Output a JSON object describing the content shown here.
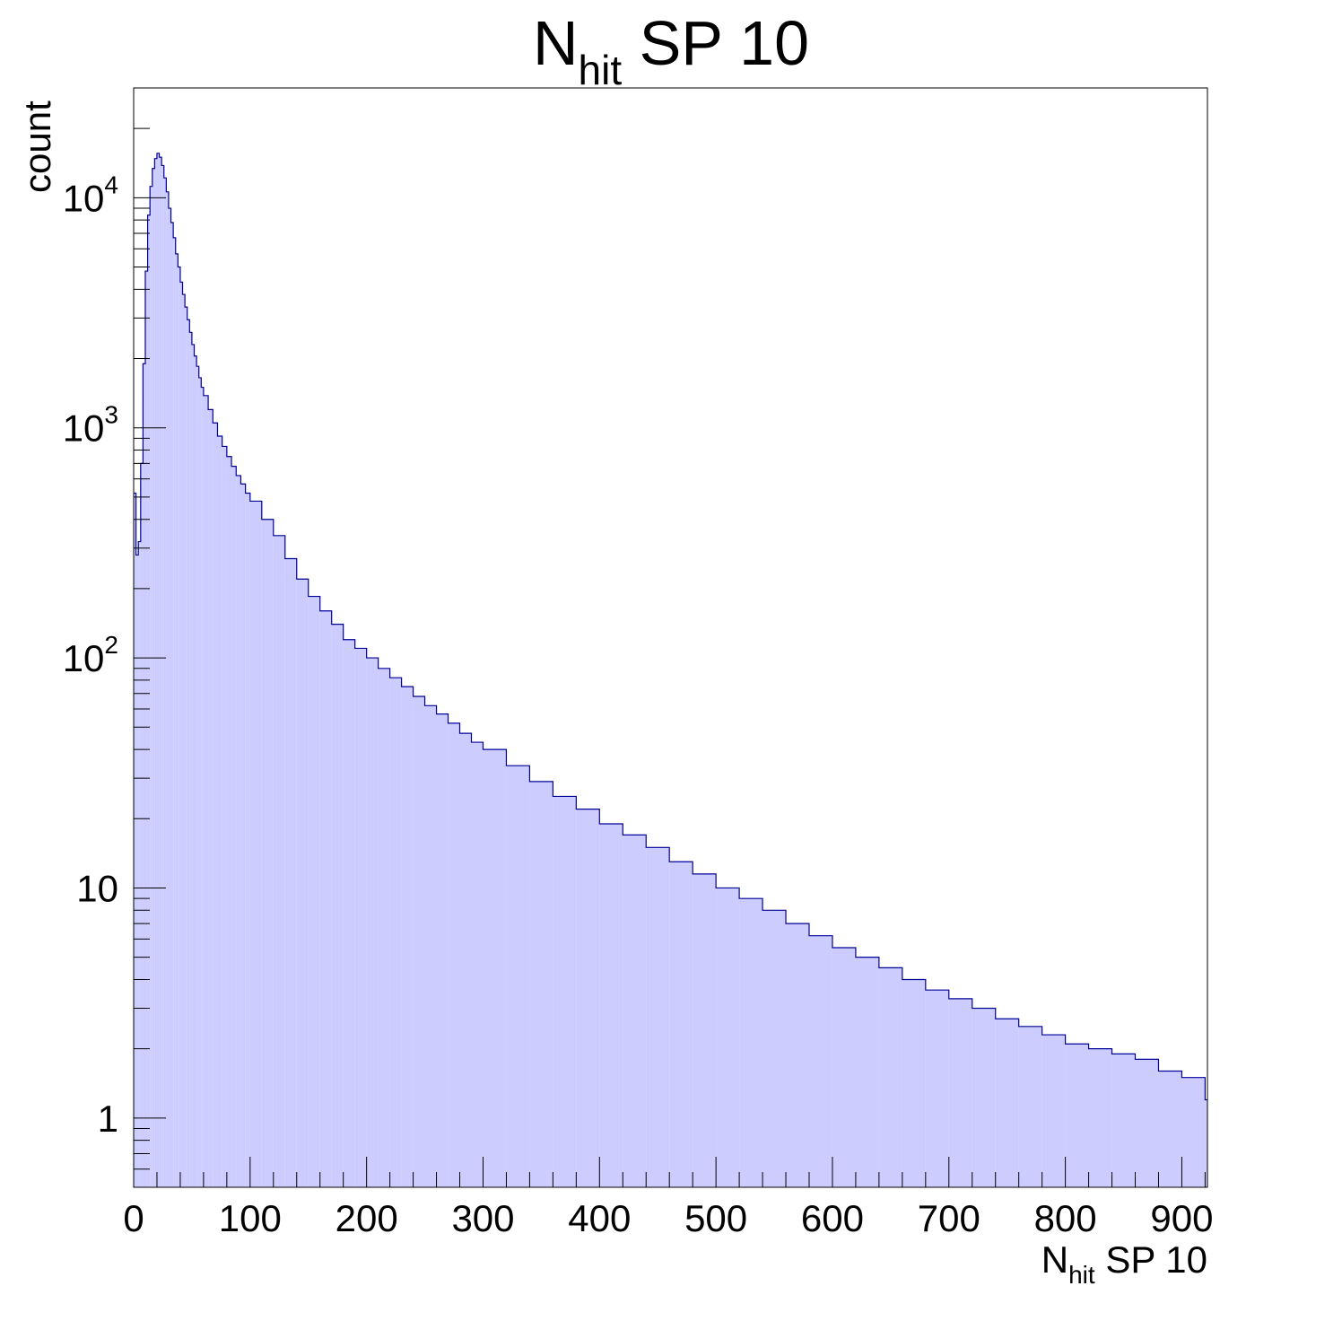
{
  "chart_data": {
    "type": "histogram",
    "title": {
      "main": "N",
      "sub": "hit",
      "rest": " SP 10"
    },
    "xlabel": {
      "main": "N",
      "sub": "hit",
      "rest": " SP 10"
    },
    "ylabel": "count",
    "x_tick_labels": [
      "0",
      "100",
      "200",
      "300",
      "400",
      "500",
      "600",
      "700",
      "800",
      "900"
    ],
    "y_tick_labels": [
      {
        "base": "1",
        "exp": ""
      },
      {
        "base": "10",
        "exp": ""
      },
      {
        "base": "10",
        "exp": "2"
      },
      {
        "base": "10",
        "exp": "3"
      },
      {
        "base": "10",
        "exp": "4"
      }
    ],
    "xlim": [
      0,
      922
    ],
    "ylim": [
      0.5,
      30000
    ],
    "y_scale": "log",
    "bin_width": 2,
    "fill_color": "#ccccff",
    "line_color": "#000099",
    "bins": [
      {
        "x": 0,
        "y": 520
      },
      {
        "x": 2,
        "y": 280
      },
      {
        "x": 4,
        "y": 320
      },
      {
        "x": 6,
        "y": 700
      },
      {
        "x": 8,
        "y": 1900
      },
      {
        "x": 10,
        "y": 4800
      },
      {
        "x": 12,
        "y": 8400
      },
      {
        "x": 14,
        "y": 11200
      },
      {
        "x": 16,
        "y": 13400
      },
      {
        "x": 18,
        "y": 14800
      },
      {
        "x": 20,
        "y": 15600
      },
      {
        "x": 22,
        "y": 15000
      },
      {
        "x": 24,
        "y": 13800
      },
      {
        "x": 26,
        "y": 12200
      },
      {
        "x": 28,
        "y": 10600
      },
      {
        "x": 30,
        "y": 9000
      },
      {
        "x": 32,
        "y": 7800
      },
      {
        "x": 34,
        "y": 6700
      },
      {
        "x": 36,
        "y": 5700
      },
      {
        "x": 38,
        "y": 5000
      },
      {
        "x": 40,
        "y": 4300
      },
      {
        "x": 42,
        "y": 3800
      },
      {
        "x": 44,
        "y": 3350
      },
      {
        "x": 46,
        "y": 2950
      },
      {
        "x": 48,
        "y": 2600
      },
      {
        "x": 50,
        "y": 2300
      },
      {
        "x": 52,
        "y": 2050
      },
      {
        "x": 54,
        "y": 1850
      },
      {
        "x": 56,
        "y": 1650
      },
      {
        "x": 58,
        "y": 1500
      },
      {
        "x": 60,
        "y": 1380
      },
      {
        "x": 64,
        "y": 1200
      },
      {
        "x": 68,
        "y": 1050
      },
      {
        "x": 72,
        "y": 920
      },
      {
        "x": 76,
        "y": 830
      },
      {
        "x": 80,
        "y": 750
      },
      {
        "x": 84,
        "y": 680
      },
      {
        "x": 88,
        "y": 620
      },
      {
        "x": 92,
        "y": 570
      },
      {
        "x": 96,
        "y": 520
      },
      {
        "x": 100,
        "y": 480
      },
      {
        "x": 110,
        "y": 400
      },
      {
        "x": 120,
        "y": 340
      },
      {
        "x": 130,
        "y": 270
      },
      {
        "x": 140,
        "y": 220
      },
      {
        "x": 150,
        "y": 185
      },
      {
        "x": 160,
        "y": 160
      },
      {
        "x": 170,
        "y": 140
      },
      {
        "x": 180,
        "y": 120
      },
      {
        "x": 190,
        "y": 110
      },
      {
        "x": 200,
        "y": 100
      },
      {
        "x": 210,
        "y": 90
      },
      {
        "x": 220,
        "y": 82
      },
      {
        "x": 230,
        "y": 75
      },
      {
        "x": 240,
        "y": 68
      },
      {
        "x": 250,
        "y": 62
      },
      {
        "x": 260,
        "y": 57
      },
      {
        "x": 270,
        "y": 52
      },
      {
        "x": 280,
        "y": 47
      },
      {
        "x": 290,
        "y": 43
      },
      {
        "x": 300,
        "y": 40
      },
      {
        "x": 320,
        "y": 34
      },
      {
        "x": 340,
        "y": 29
      },
      {
        "x": 360,
        "y": 25
      },
      {
        "x": 380,
        "y": 22
      },
      {
        "x": 400,
        "y": 19
      },
      {
        "x": 420,
        "y": 17
      },
      {
        "x": 440,
        "y": 15
      },
      {
        "x": 460,
        "y": 13
      },
      {
        "x": 480,
        "y": 11.5
      },
      {
        "x": 500,
        "y": 10
      },
      {
        "x": 520,
        "y": 9
      },
      {
        "x": 540,
        "y": 8
      },
      {
        "x": 560,
        "y": 7
      },
      {
        "x": 580,
        "y": 6.2
      },
      {
        "x": 600,
        "y": 5.5
      },
      {
        "x": 620,
        "y": 5
      },
      {
        "x": 640,
        "y": 4.5
      },
      {
        "x": 660,
        "y": 4
      },
      {
        "x": 680,
        "y": 3.6
      },
      {
        "x": 700,
        "y": 3.3
      },
      {
        "x": 720,
        "y": 3
      },
      {
        "x": 740,
        "y": 2.7
      },
      {
        "x": 760,
        "y": 2.5
      },
      {
        "x": 780,
        "y": 2.3
      },
      {
        "x": 800,
        "y": 2.1
      },
      {
        "x": 820,
        "y": 2
      },
      {
        "x": 840,
        "y": 1.9
      },
      {
        "x": 860,
        "y": 1.8
      },
      {
        "x": 880,
        "y": 1.6
      },
      {
        "x": 900,
        "y": 1.5
      },
      {
        "x": 920,
        "y": 1.2
      }
    ]
  }
}
